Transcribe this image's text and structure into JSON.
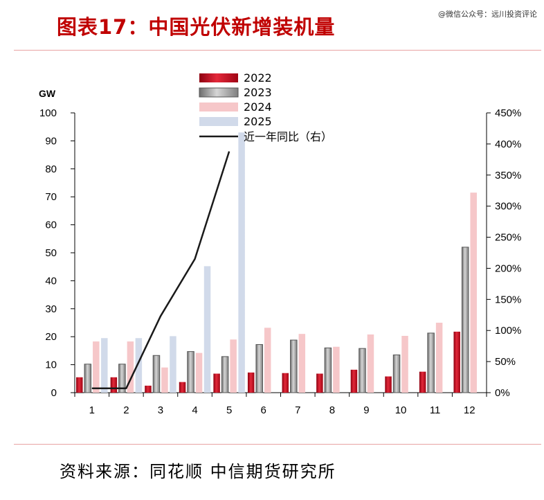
{
  "header": {
    "title": "图表17：中国光伏新增装机量",
    "watermark": "@微信公众号：远川投资评论"
  },
  "footer": {
    "source": "资料来源：同花顺  中信期货研究所"
  },
  "colors": {
    "2022": "#d10b1e",
    "2023": "#a6a6a6",
    "2024": "#f6c7c9",
    "2025": "#d1daea",
    "line": "#1a1a1a"
  },
  "chart_data": {
    "type": "bar",
    "unit_label": "GW",
    "categories": [
      "1",
      "2",
      "3",
      "4",
      "5",
      "6",
      "7",
      "8",
      "9",
      "10",
      "11",
      "12"
    ],
    "series": [
      {
        "name": "2022",
        "values": [
          5.5,
          5.5,
          2.5,
          3.8,
          6.8,
          7.2,
          7,
          6.8,
          8.2,
          5.8,
          7.5,
          21.8
        ]
      },
      {
        "name": "2023",
        "values": [
          10.2,
          10.2,
          13.3,
          14.7,
          12.9,
          17.2,
          18.8,
          16,
          15.8,
          13.5,
          21.3,
          52
        ]
      },
      {
        "name": "2024",
        "values": [
          18.3,
          18.3,
          9,
          14.2,
          19,
          23.2,
          21,
          16.4,
          20.8,
          20.3,
          25,
          71.5
        ]
      },
      {
        "name": "2025",
        "values": [
          19.5,
          19.5,
          20.2,
          45.2,
          93,
          null,
          null,
          null,
          null,
          null,
          null,
          null
        ]
      }
    ],
    "line_series": {
      "name": "近一年同比（右）",
      "values": [
        7,
        7,
        123,
        215,
        388,
        null,
        null,
        null,
        null,
        null,
        null,
        null
      ]
    },
    "y_left": {
      "min": 0,
      "max": 100,
      "ticks": [
        "0",
        "10",
        "20",
        "30",
        "40",
        "50",
        "60",
        "70",
        "80",
        "90",
        "100"
      ]
    },
    "y_right": {
      "min": 0,
      "max": 450,
      "ticks": [
        "0%",
        "50%",
        "100%",
        "150%",
        "200%",
        "250%",
        "300%",
        "350%",
        "400%",
        "450%"
      ]
    },
    "legend_position": "top-center"
  }
}
